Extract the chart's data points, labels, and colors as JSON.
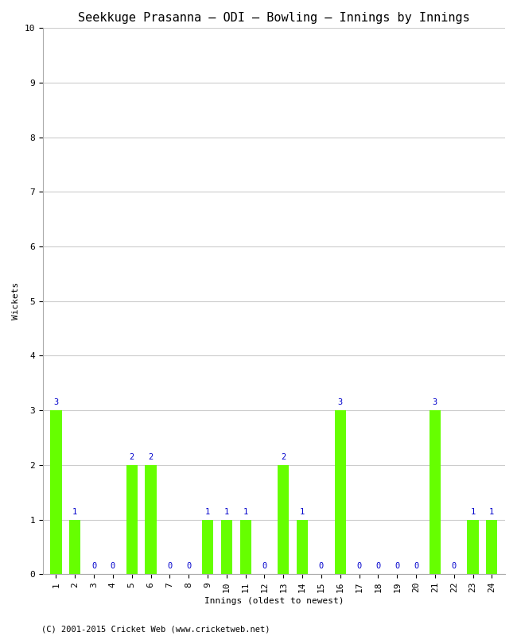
{
  "title": "Seekkuge Prasanna – ODI – Bowling – Innings by Innings",
  "xlabel": "Innings (oldest to newest)",
  "ylabel": "Wickets",
  "footnote": "(C) 2001-2015 Cricket Web (www.cricketweb.net)",
  "innings": [
    1,
    2,
    3,
    4,
    5,
    6,
    7,
    8,
    9,
    10,
    11,
    12,
    13,
    14,
    15,
    16,
    17,
    18,
    19,
    20,
    21,
    22,
    23,
    24
  ],
  "wickets": [
    3,
    1,
    0,
    0,
    2,
    2,
    0,
    0,
    1,
    1,
    1,
    0,
    2,
    1,
    0,
    3,
    0,
    0,
    0,
    0,
    3,
    0,
    1,
    1
  ],
  "bar_color": "#66ff00",
  "label_color": "#0000cc",
  "ylim": [
    0,
    10
  ],
  "yticks": [
    0,
    1,
    2,
    3,
    4,
    5,
    6,
    7,
    8,
    9,
    10
  ],
  "background_color": "#ffffff",
  "grid_color": "#cccccc",
  "title_fontsize": 11,
  "axis_label_fontsize": 8,
  "tick_fontsize": 8,
  "bar_label_fontsize": 7.5,
  "footnote_fontsize": 7.5
}
